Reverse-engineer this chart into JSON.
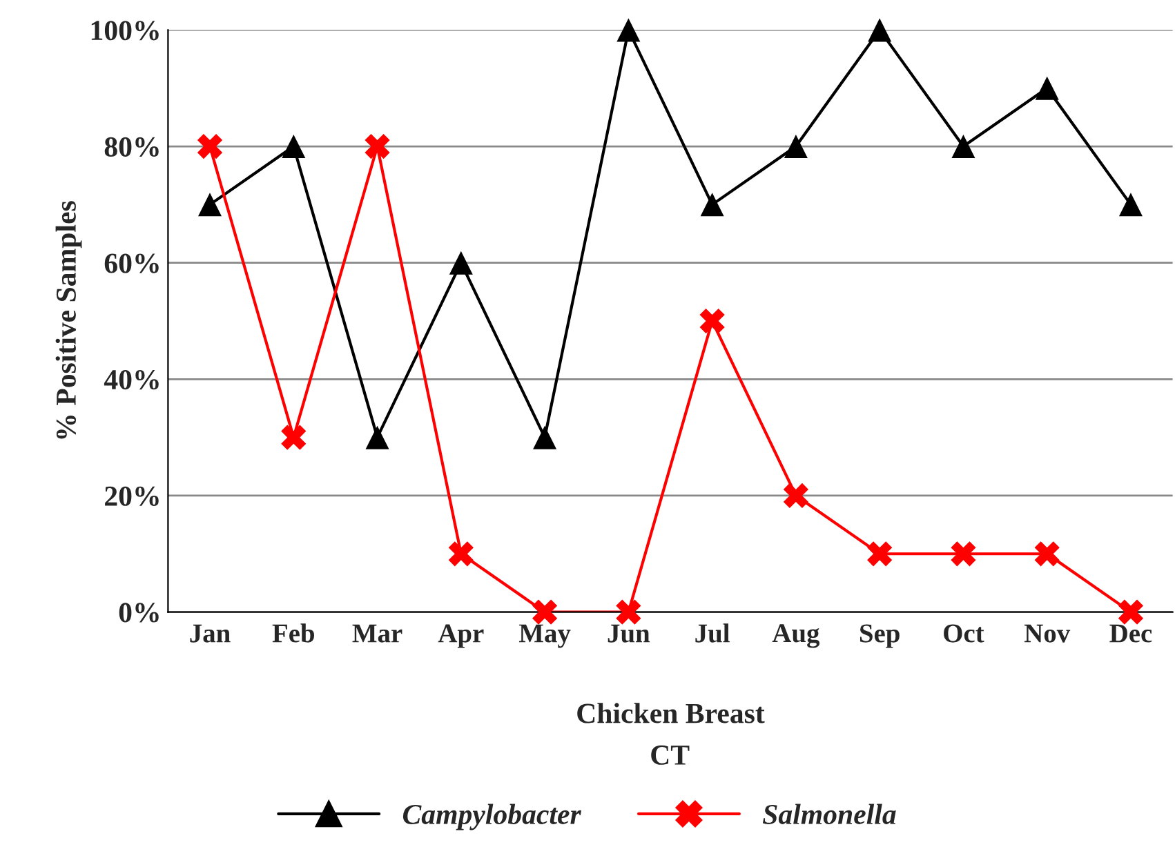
{
  "chart_data": {
    "type": "line",
    "ylabel": "% Positive Samples",
    "xlabel": "Chicken Breast",
    "annotations": [
      "CT"
    ],
    "categories": [
      "Jan",
      "Feb",
      "Mar",
      "Apr",
      "May",
      "Jun",
      "Jul",
      "Aug",
      "Sep",
      "Oct",
      "Nov",
      "Dec"
    ],
    "series": [
      {
        "name": "Campylobacter",
        "color": "#000000",
        "marker": "triangle",
        "values": [
          70,
          80,
          30,
          60,
          30,
          100,
          70,
          80,
          100,
          80,
          90,
          70
        ]
      },
      {
        "name": "Salmonella",
        "color": "#ff0000",
        "marker": "cross",
        "values": [
          80,
          30,
          80,
          10,
          0,
          0,
          50,
          20,
          10,
          10,
          10,
          0
        ]
      }
    ],
    "ylim": [
      0,
      100
    ],
    "yticks": [
      {
        "value": 0,
        "label": "0%"
      },
      {
        "value": 20,
        "label": "20%"
      },
      {
        "value": 40,
        "label": "40%"
      },
      {
        "value": 60,
        "label": "60%"
      },
      {
        "value": 80,
        "label": "80%"
      },
      {
        "value": 100,
        "label": "100%"
      }
    ],
    "grid": "y",
    "legend": "bottom",
    "line_style": "solid"
  }
}
